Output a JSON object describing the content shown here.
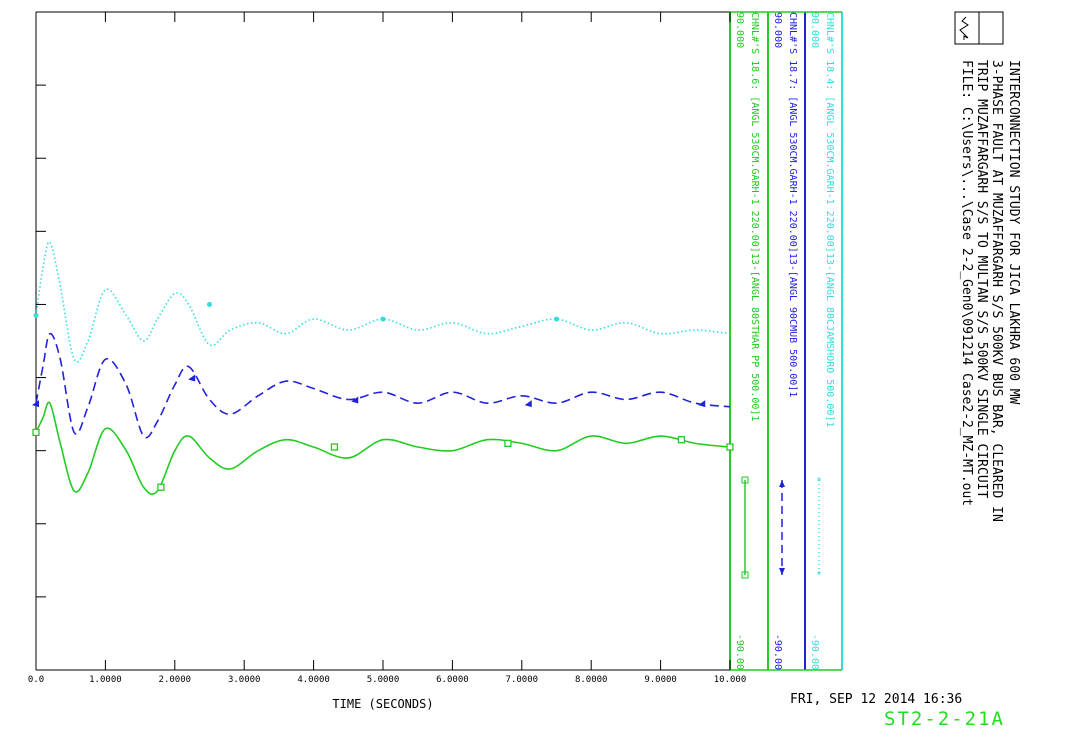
{
  "chart_data": {
    "type": "line",
    "x_axis": {
      "label": "TIME (SECONDS)",
      "range": [
        0,
        10
      ],
      "ticks": [
        0,
        1,
        2,
        3,
        4,
        5,
        6,
        7,
        8,
        9,
        10
      ],
      "tick_labels": [
        "0.0",
        "1.0000",
        "2.0000",
        "3.0000",
        "4.0000",
        "5.0000",
        "6.0000",
        "7.0000",
        "8.0000",
        "9.0000",
        "10.000"
      ]
    },
    "y_axis": {
      "range": [
        -90,
        90
      ],
      "grid": false
    },
    "series": [
      {
        "name": "CHNL#'S 18.4: [ANGL 530CM.GARH-1 220.00]13-[ANGL 80CJAMSHORO 500.00]1",
        "color": "#33dddd",
        "dash": "dotted",
        "marker": "asterisk",
        "scale": {
          "max": "90.000",
          "min": "-90.00"
        },
        "x": [
          0,
          0.1,
          0.2,
          0.35,
          0.55,
          0.75,
          1.0,
          1.3,
          1.55,
          1.75,
          2.0,
          2.2,
          2.5,
          2.8,
          3.2,
          3.6,
          4.0,
          4.5,
          5.0,
          5.5,
          6.0,
          6.5,
          7.0,
          7.5,
          8.0,
          8.5,
          9.0,
          9.5,
          10.0
        ],
        "y": [
          7,
          20,
          27,
          15,
          -5,
          0,
          14,
          7,
          0,
          6,
          13,
          10,
          -1,
          3,
          5,
          2,
          6,
          3,
          6,
          3,
          5,
          2,
          4,
          6,
          3,
          5,
          2,
          3,
          2
        ],
        "marker_x": [
          0,
          2.5,
          5.0,
          7.5
        ],
        "marker_y": [
          7,
          10,
          6,
          6
        ]
      },
      {
        "name": "CHNL#'S 18.7: [ANGL 530CM.GARH-1 220.00]13-[ANGL 90CMUB 500.00]1",
        "color": "#2222dd",
        "dash": "dashed",
        "marker": "triangle",
        "scale": {
          "max": "90.000",
          "min": "-90.00"
        },
        "x": [
          0,
          0.1,
          0.2,
          0.35,
          0.55,
          0.75,
          1.0,
          1.3,
          1.55,
          1.75,
          2.0,
          2.2,
          2.5,
          2.8,
          3.2,
          3.6,
          4.0,
          4.5,
          5.0,
          5.5,
          6.0,
          6.5,
          7.0,
          7.5,
          8.0,
          8.5,
          9.0,
          9.5,
          10.0
        ],
        "y": [
          -17,
          -7,
          2,
          -5,
          -25,
          -18,
          -5,
          -12,
          -26,
          -22,
          -12,
          -7,
          -16,
          -20,
          -15,
          -11,
          -13,
          -16,
          -14,
          -17,
          -14,
          -17,
          -15,
          -17,
          -14,
          -16,
          -14,
          -17,
          -18
        ],
        "marker_x": [
          0,
          2.25,
          4.6,
          7.1,
          9.6
        ],
        "marker_y": [
          -17,
          -10,
          -16,
          -17,
          -17
        ]
      },
      {
        "name": "CHNL#'S 18.6: [ANGL 530CM.GARH-1 220.00]13-[ANGL 80STHAR PP 500.00]1",
        "color": "#22cc22",
        "dash": "solid",
        "marker": "square",
        "scale": {
          "max": "90.000",
          "min": "-90.00"
        },
        "x": [
          0,
          0.1,
          0.2,
          0.35,
          0.55,
          0.75,
          1.0,
          1.3,
          1.55,
          1.75,
          2.0,
          2.2,
          2.5,
          2.8,
          3.2,
          3.6,
          4.0,
          4.5,
          5.0,
          5.5,
          6.0,
          6.5,
          7.0,
          7.5,
          8.0,
          8.5,
          9.0,
          9.5,
          10.0
        ],
        "y": [
          -25,
          -21,
          -17,
          -28,
          -41,
          -36,
          -24,
          -30,
          -40,
          -41,
          -30,
          -26,
          -32,
          -35,
          -30,
          -27,
          -29,
          -32,
          -27,
          -29,
          -30,
          -27,
          -28,
          -30,
          -26,
          -28,
          -26,
          -28,
          -29
        ],
        "marker_x": [
          0,
          1.8,
          4.3,
          6.8,
          9.3,
          10.0
        ],
        "marker_y": [
          -25,
          -40,
          -29,
          -28,
          -27,
          -29
        ]
      }
    ]
  },
  "header": {
    "title": "INTERCONNECTION STUDY FOR JICA LAKHRA 600 MW",
    "line2": "3-PHASE FAULT AT MUZAFFARGARH S/S 500KV BUS BAR, CLEARED IN",
    "line3": "TRIP MUZAFFARGARH S/S TO MULTAN S/S 500KV SINGLE CIRCUIT",
    "file": "FILE: C:\\Users\\...\\Case 2-2_Gen0\\091214 Case2-2_MZ-MT.out"
  },
  "date_text": "FRI, SEP 12 2014  16:36",
  "plot_id": "ST2-2-21A",
  "colors": {
    "axis": "#22cc22",
    "cyan": "#33dddd",
    "blue": "#2222dd",
    "green": "#22cc22"
  }
}
